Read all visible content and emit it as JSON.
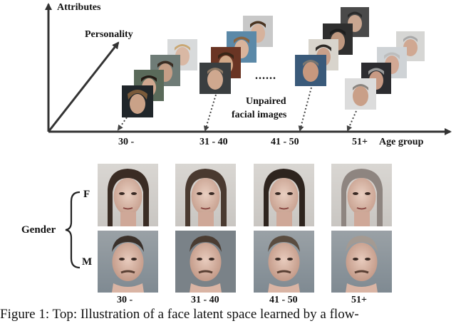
{
  "top_panel": {
    "y_axis_label": "Attributes",
    "diagonal_label": "Personality",
    "x_axis_label": "Age group",
    "ellipsis": "......",
    "annotation": [
      "Unpaired",
      "facial images"
    ],
    "age_groups": [
      "30 -",
      "31 - 40",
      "41 - 50",
      "51+"
    ]
  },
  "bottom_panel": {
    "row_axis_label": "Gender",
    "rows": [
      "F",
      "M"
    ],
    "age_groups": [
      "30 -",
      "31 - 40",
      "41 - 50",
      "51+"
    ]
  },
  "caption": "Figure 1: Top: Illustration of a face latent space learned by a flow-"
}
